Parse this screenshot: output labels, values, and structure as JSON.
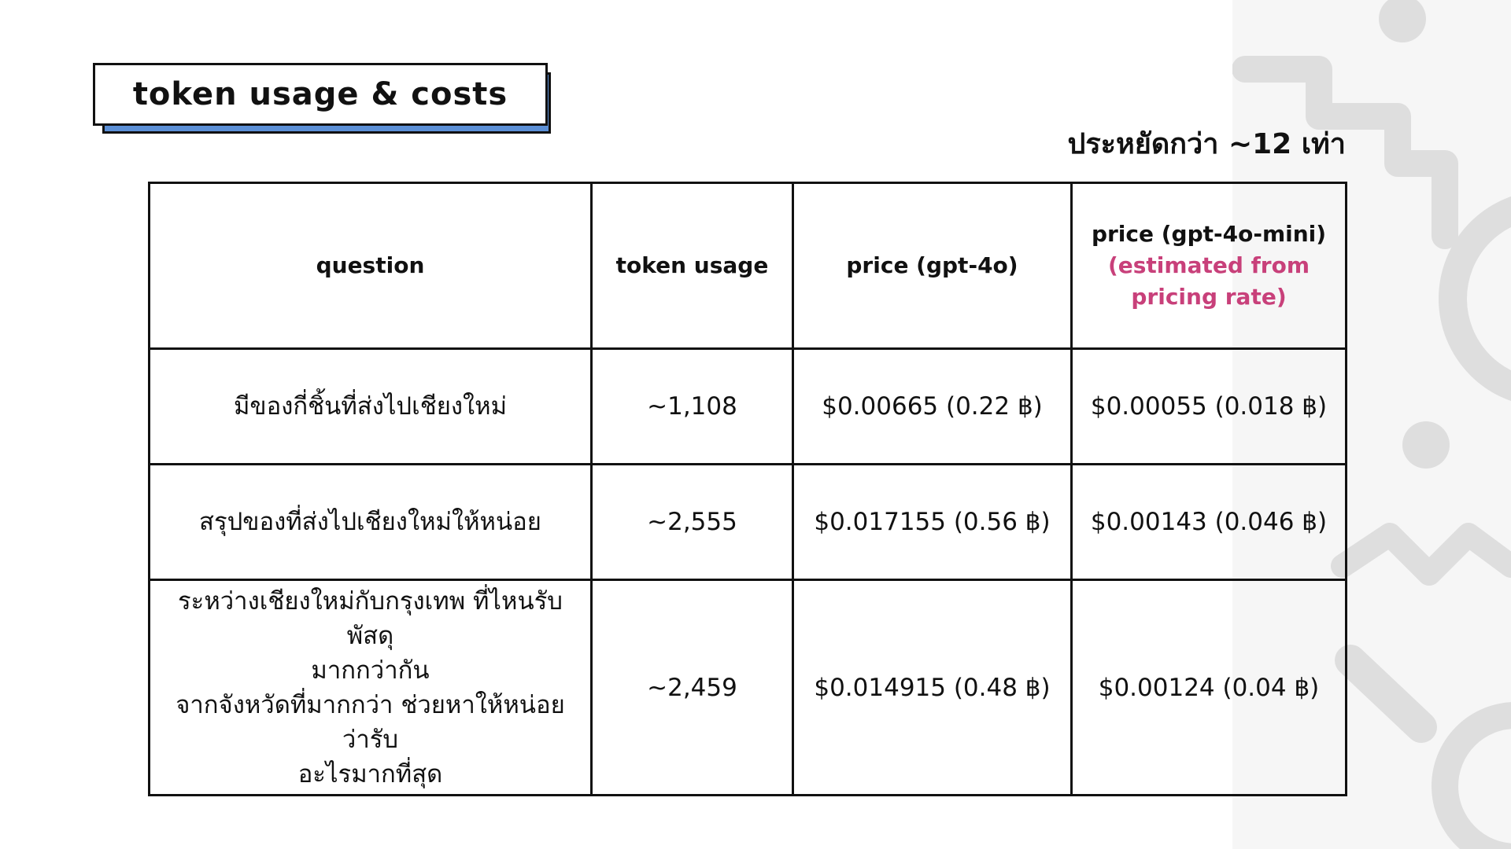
{
  "title": "token usage & costs",
  "subtitle": "ประหยัดกว่า ~12 เท่า",
  "colors": {
    "shadow_accent": "#5b8fd6",
    "note_text": "#c8407a",
    "border": "#111111",
    "decor_gray": "#dedede"
  },
  "table": {
    "headers": {
      "question": "question",
      "token_usage": "token usage",
      "price_gpt4o": "price (gpt-4o)",
      "price_mini": "price (gpt-4o-mini)",
      "price_mini_note": "(estimated from pricing rate)"
    },
    "rows": [
      {
        "question_lines": [
          "มีของกี่ชิ้นที่ส่งไปเชียงใหม่"
        ],
        "tokens": "~1,108",
        "price_gpt4o": "$0.00665 (0.22 ฿)",
        "price_mini": "$0.00055 (0.018 ฿)"
      },
      {
        "question_lines": [
          "สรุปของที่ส่งไปเชียงใหม่ให้หน่อย"
        ],
        "tokens": "~2,555",
        "price_gpt4o": "$0.017155 (0.56 ฿)",
        "price_mini": "$0.00143 (0.046 ฿)"
      },
      {
        "question_lines": [
          "ระหว่างเชียงใหม่กับกรุงเทพ ที่ไหนรับพัสดุ",
          "มากกว่ากัน",
          "จากจังหวัดที่มากกว่า ช่วยหาให้หน่อยว่ารับ",
          "อะไรมากที่สุด"
        ],
        "tokens": "~2,459",
        "price_gpt4o": "$0.014915 (0.48 ฿)",
        "price_mini": "$0.00124 (0.04 ฿)"
      }
    ]
  }
}
